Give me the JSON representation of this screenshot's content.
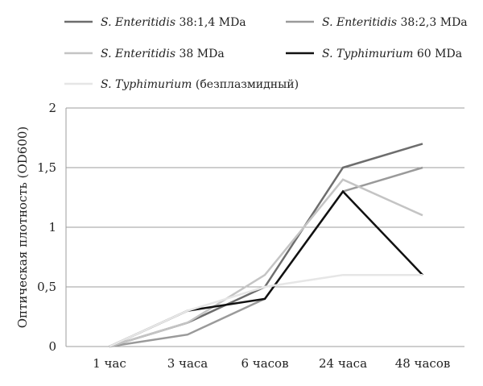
{
  "chart_data": {
    "type": "line",
    "categories": [
      "1 час",
      "3 часа",
      "6 часов",
      "24 часа",
      "48 часов"
    ],
    "ylabel": "Оптическая плотность (OD600)",
    "ylim": [
      0,
      2
    ],
    "yticks": [
      0,
      0.5,
      1,
      1.5,
      2
    ],
    "ytick_labels": [
      "0",
      "0,5",
      "1",
      "1,5",
      "2"
    ],
    "grid": true,
    "legend_position": "top",
    "series": [
      {
        "name_italic": "S. Enteritidis",
        "name_rest": " 38:1,4 MDa",
        "color": "#6d6d6d",
        "values": [
          0,
          0.2,
          0.5,
          1.5,
          1.7
        ]
      },
      {
        "name_italic": "S. Enteritidis",
        "name_rest": " 38:2,3 MDa",
        "color": "#9a9a9a",
        "values": [
          0,
          0.1,
          0.4,
          1.3,
          1.5
        ]
      },
      {
        "name_italic": "S. Enteritidis",
        "name_rest": " 38 MDa",
        "color": "#c4c4c4",
        "values": [
          0,
          0.2,
          0.6,
          1.4,
          1.1
        ]
      },
      {
        "name_italic": "S. Typhimurium",
        "name_rest": " 60 MDa",
        "color": "#111111",
        "values": [
          0,
          0.3,
          0.4,
          1.3,
          0.6
        ]
      },
      {
        "name_italic": "S. Typhimurium",
        "name_rest": " (безплазмидный)",
        "color": "#e6e6e6",
        "values": [
          0,
          0.3,
          0.5,
          0.6,
          0.6
        ]
      }
    ]
  }
}
